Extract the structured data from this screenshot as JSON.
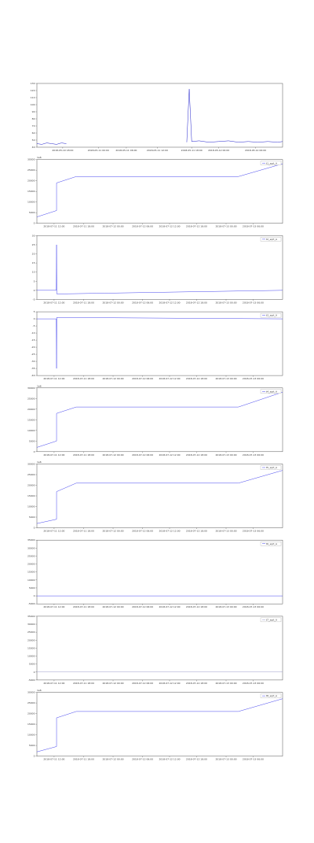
{
  "chart_data": [
    {
      "type": "line",
      "ylim": [
        40,
        130
      ],
      "yticks": [
        40,
        50,
        60,
        70,
        80,
        90,
        100,
        110,
        120,
        130
      ],
      "xlim": [
        0,
        100
      ],
      "xticks": [
        {
          "value": 10.5,
          "label": "2018-05-10 18:00"
        },
        {
          "value": 25,
          "label": "2018-05-11 00:00"
        },
        {
          "value": 36.4,
          "label": "2018-05-11 06:00"
        },
        {
          "value": 49,
          "label": "2018-05-11 12:00"
        },
        {
          "value": 63,
          "label": "2018-05-11 18:00"
        },
        {
          "value": 74,
          "label": "2018-05-12 00:00"
        },
        {
          "value": 89,
          "label": "2018-05-12 06:00"
        }
      ],
      "series": [
        {
          "color": "#2222cc",
          "x": [
            0,
            2,
            4,
            6,
            8,
            10,
            12,
            37,
            61,
            62,
            63,
            66,
            70,
            74,
            78,
            82,
            86,
            90,
            94,
            98,
            100
          ],
          "values": [
            45,
            44,
            46,
            45,
            44,
            46,
            45,
            null,
            47,
            122,
            48,
            49,
            47,
            48,
            49,
            47,
            48,
            47,
            48,
            47,
            48
          ]
        }
      ]
    },
    {
      "type": "line",
      "offset_label": "1e6",
      "ylim": [
        0,
        30000
      ],
      "yticks": [
        0,
        5000,
        10000,
        15000,
        20000,
        25000,
        30000
      ],
      "xlim": [
        0,
        100
      ],
      "xticks": [
        {
          "value": 7,
          "label": "2018-07-11 12:00"
        },
        {
          "value": 19,
          "label": "2018-07-11 18:00"
        },
        {
          "value": 31,
          "label": "2018-07-12 00:00"
        },
        {
          "value": 43,
          "label": "2018-07-12 06:00"
        },
        {
          "value": 54,
          "label": "2018-07-12 12:00"
        },
        {
          "value": 65,
          "label": "2018-07-12 18:00"
        },
        {
          "value": 77,
          "label": "2018-07-13 00:00"
        },
        {
          "value": 88,
          "label": "2018-07-13 06:00"
        }
      ],
      "series": [
        {
          "name": "t1_sqrt_A",
          "color": "#4444ee",
          "x": [
            0,
            8,
            8,
            16,
            82,
            100
          ],
          "values": [
            3000,
            6000,
            19000,
            22000,
            22000,
            28000
          ]
        }
      ]
    },
    {
      "type": "line",
      "ylim": [
        -5,
        30
      ],
      "yticks": [
        -5,
        0,
        5,
        10,
        15,
        20,
        25,
        30
      ],
      "xlim": [
        0,
        100
      ],
      "xticks": [
        {
          "value": 7,
          "label": "2018-07-11 12:00"
        },
        {
          "value": 19,
          "label": "2018-07-11 18:00"
        },
        {
          "value": 31,
          "label": "2018-07-12 00:00"
        },
        {
          "value": 43,
          "label": "2018-07-12 06:00"
        },
        {
          "value": 54,
          "label": "2018-07-12 12:00"
        },
        {
          "value": 65,
          "label": "2018-07-12 18:00"
        },
        {
          "value": 77,
          "label": "2018-07-13 00:00"
        },
        {
          "value": 88,
          "label": "2018-07-13 06:00"
        }
      ],
      "series": [
        {
          "name": "t2_sqrt_A",
          "color": "#4444ee",
          "x": [
            0,
            7.9,
            8,
            8.1,
            100
          ],
          "values": [
            0,
            0,
            25,
            -2,
            0
          ]
        }
      ]
    },
    {
      "type": "line",
      "ylim": [
        -40,
        5
      ],
      "yticks": [
        -40,
        -35,
        -30,
        -25,
        -20,
        -15,
        -10,
        -5,
        0,
        5
      ],
      "xlim": [
        0,
        100
      ],
      "xticks": [
        {
          "value": 7,
          "label": "2018-07-11 12:00"
        },
        {
          "value": 19,
          "label": "2018-07-11 18:00"
        },
        {
          "value": 31,
          "label": "2018-07-12 00:00"
        },
        {
          "value": 43,
          "label": "2018-07-12 06:00"
        },
        {
          "value": 54,
          "label": "2018-07-12 12:00"
        },
        {
          "value": 65,
          "label": "2018-07-12 18:00"
        },
        {
          "value": 77,
          "label": "2018-07-13 00:00"
        },
        {
          "value": 88,
          "label": "2018-07-13 06:00"
        }
      ],
      "series": [
        {
          "name": "t3_sqrt_A",
          "color": "#4444ee",
          "x": [
            0,
            7.9,
            8,
            8.1,
            100
          ],
          "values": [
            0,
            0,
            -35,
            1,
            0
          ]
        }
      ]
    },
    {
      "type": "line",
      "offset_label": "1e6",
      "ylim": [
        0,
        30000
      ],
      "yticks": [
        0,
        5000,
        10000,
        15000,
        20000,
        25000,
        30000
      ],
      "xlim": [
        0,
        100
      ],
      "xticks": [
        {
          "value": 7,
          "label": "2018-07-11 12:00"
        },
        {
          "value": 19,
          "label": "2018-07-11 18:00"
        },
        {
          "value": 31,
          "label": "2018-07-12 00:00"
        },
        {
          "value": 43,
          "label": "2018-07-12 06:00"
        },
        {
          "value": 54,
          "label": "2018-07-12 12:00"
        },
        {
          "value": 65,
          "label": "2018-07-12 18:00"
        },
        {
          "value": 77,
          "label": "2018-07-13 00:00"
        },
        {
          "value": 88,
          "label": "2018-07-13 06:00"
        }
      ],
      "series": [
        {
          "name": "t4_sqrt_A",
          "color": "#4444ee",
          "x": [
            0,
            8,
            8,
            16,
            82,
            100
          ],
          "values": [
            2000,
            5000,
            18000,
            21000,
            21000,
            28000
          ]
        }
      ]
    },
    {
      "type": "line",
      "offset_label": "1e6",
      "ylim": [
        0,
        30000
      ],
      "yticks": [
        0,
        5000,
        10000,
        15000,
        20000,
        25000,
        30000
      ],
      "xlim": [
        0,
        100
      ],
      "xticks": [
        {
          "value": 7,
          "label": "2018-07-11 12:00"
        },
        {
          "value": 19,
          "label": "2018-07-11 18:00"
        },
        {
          "value": 31,
          "label": "2018-07-12 00:00"
        },
        {
          "value": 43,
          "label": "2018-07-12 06:00"
        },
        {
          "value": 54,
          "label": "2018-07-12 12:00"
        },
        {
          "value": 65,
          "label": "2018-07-12 18:00"
        },
        {
          "value": 77,
          "label": "2018-07-13 00:00"
        },
        {
          "value": 88,
          "label": "2018-07-13 06:00"
        }
      ],
      "series": [
        {
          "name": "t5_sqrt_A",
          "color": "#4444ee",
          "x": [
            0,
            8,
            8,
            16,
            82,
            100
          ],
          "values": [
            2000,
            4000,
            17000,
            21000,
            21000,
            27000
          ]
        }
      ]
    },
    {
      "type": "line",
      "ylim": [
        -5000,
        35000
      ],
      "yticks": [
        -5000,
        0,
        5000,
        10000,
        15000,
        20000,
        25000,
        30000,
        35000
      ],
      "xlim": [
        0,
        100
      ],
      "xticks": [
        {
          "value": 7,
          "label": "2018-07-11 12:00"
        },
        {
          "value": 19,
          "label": "2018-07-11 18:00"
        },
        {
          "value": 31,
          "label": "2018-07-12 00:00"
        },
        {
          "value": 43,
          "label": "2018-07-12 06:00"
        },
        {
          "value": 54,
          "label": "2018-07-12 12:00"
        },
        {
          "value": 65,
          "label": "2018-07-12 18:00"
        },
        {
          "value": 77,
          "label": "2018-07-13 00:00"
        },
        {
          "value": 88,
          "label": "2018-07-13 06:00"
        }
      ],
      "series": [
        {
          "name": "t6_sqrt_A",
          "color": "#4444ee",
          "x": [
            0,
            100
          ],
          "values": [
            0,
            0
          ]
        }
      ]
    },
    {
      "type": "line",
      "ylim": [
        -5000,
        35000
      ],
      "yticks": [
        -5000,
        0,
        5000,
        10000,
        15000,
        20000,
        25000,
        30000,
        35000
      ],
      "xlim": [
        0,
        100
      ],
      "xticks": [
        {
          "value": 7,
          "label": "2018-07-11 12:00"
        },
        {
          "value": 19,
          "label": "2018-07-11 18:00"
        },
        {
          "value": 31,
          "label": "2018-07-12 00:00"
        },
        {
          "value": 43,
          "label": "2018-07-12 06:00"
        },
        {
          "value": 54,
          "label": "2018-07-12 12:00"
        },
        {
          "value": 65,
          "label": "2018-07-12 18:00"
        },
        {
          "value": 77,
          "label": "2018-07-13 00:00"
        },
        {
          "value": 88,
          "label": "2018-07-13 06:00"
        }
      ],
      "series": [
        {
          "name": "t7_sqrt_A",
          "color": "#9999cc",
          "x": [
            0,
            100
          ],
          "values": [
            0,
            0
          ]
        }
      ]
    },
    {
      "type": "line",
      "offset_label": "1e6",
      "ylim": [
        0,
        30000
      ],
      "yticks": [
        0,
        5000,
        10000,
        15000,
        20000,
        25000,
        30000
      ],
      "xlim": [
        0,
        100
      ],
      "xticks": [
        {
          "value": 7,
          "label": "2018-07-11 12:00"
        },
        {
          "value": 19,
          "label": "2018-07-11 18:00"
        },
        {
          "value": 31,
          "label": "2018-07-12 00:00"
        },
        {
          "value": 43,
          "label": "2018-07-12 06:00"
        },
        {
          "value": 54,
          "label": "2018-07-12 12:00"
        },
        {
          "value": 65,
          "label": "2018-07-12 18:00"
        },
        {
          "value": 77,
          "label": "2018-07-13 00:00"
        },
        {
          "value": 88,
          "label": "2018-07-13 06:00"
        }
      ],
      "series": [
        {
          "name": "t8_sqrt_A",
          "color": "#4444ee",
          "x": [
            0,
            8,
            8,
            16,
            82,
            100
          ],
          "values": [
            2000,
            4500,
            18000,
            21000,
            21000,
            27000
          ]
        }
      ]
    }
  ]
}
